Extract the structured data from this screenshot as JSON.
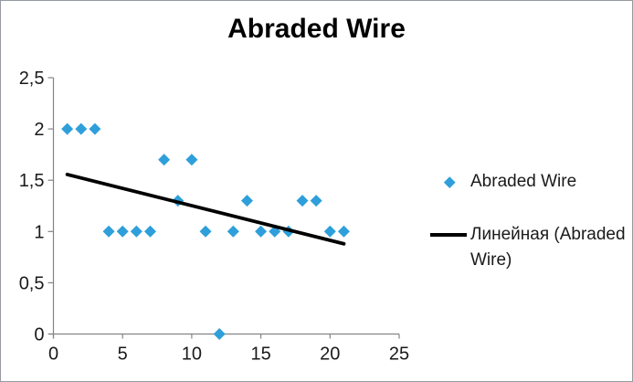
{
  "window": {
    "background": "#ffffff",
    "border_color": "#969BA1"
  },
  "chart_data": {
    "type": "scatter",
    "title": "Abraded Wire",
    "xlabel": "",
    "ylabel": "",
    "xlim": [
      0,
      25
    ],
    "ylim": [
      0,
      2.5
    ],
    "grid": false,
    "legend_position": "right",
    "decimal_separator": ",",
    "x_tick_values": [
      0,
      5,
      10,
      15,
      20,
      25
    ],
    "x_tick_labels": [
      "0",
      "5",
      "10",
      "15",
      "20",
      "25"
    ],
    "y_tick_values": [
      0,
      0.5,
      1,
      1.5,
      2,
      2.5
    ],
    "y_tick_labels": [
      "0",
      "0,5",
      "1",
      "1,5",
      "2",
      "2,5"
    ],
    "axis_color": "#848484",
    "tick_label_color": "#1a1a1a",
    "series": [
      {
        "name": "Abraded Wire",
        "marker": "diamond",
        "color": "#2E9FDA",
        "points": [
          [
            1,
            2
          ],
          [
            2,
            2
          ],
          [
            3,
            2
          ],
          [
            4,
            1
          ],
          [
            5,
            1
          ],
          [
            6,
            1
          ],
          [
            7,
            1
          ],
          [
            8,
            1.7
          ],
          [
            9,
            1.3
          ],
          [
            10,
            1.7
          ],
          [
            11,
            1
          ],
          [
            12,
            0
          ],
          [
            13,
            1
          ],
          [
            14,
            1.3
          ],
          [
            15,
            1
          ],
          [
            16,
            1
          ],
          [
            17,
            1
          ],
          [
            18,
            1.3
          ],
          [
            19,
            1.3
          ],
          [
            20,
            1
          ],
          [
            21,
            1
          ]
        ]
      }
    ],
    "trendline": {
      "name": "Линейная (Abraded Wire)",
      "color": "#000000",
      "from": [
        1,
        1.556
      ],
      "to": [
        21,
        0.88
      ]
    }
  },
  "legend": {
    "series_label": "Abraded Wire",
    "trendline_label": "Линейная (Abraded Wire)",
    "series_marker_color": "#2E9FDA",
    "trendline_swatch_color": "#000000"
  }
}
